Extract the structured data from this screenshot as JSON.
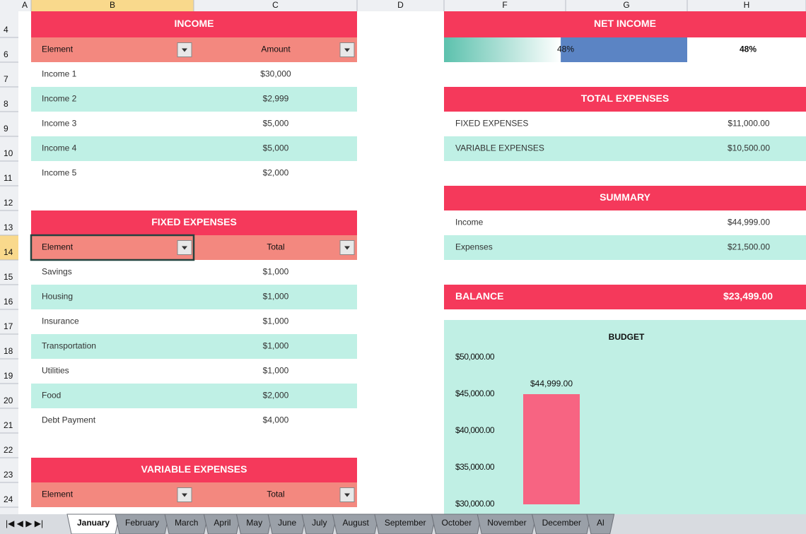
{
  "columns": [
    "A",
    "B",
    "C",
    "D",
    "F",
    "G",
    "H"
  ],
  "rows": [
    4,
    6,
    7,
    8,
    9,
    10,
    11,
    12,
    13,
    14,
    15,
    16,
    17,
    18,
    19,
    20,
    21,
    22,
    23,
    24
  ],
  "income": {
    "title": "INCOME",
    "headers": [
      "Element",
      "Amount"
    ],
    "rows": [
      [
        "Income 1",
        "$30,000"
      ],
      [
        "Income 2",
        "$2,999"
      ],
      [
        "Income 3",
        "$5,000"
      ],
      [
        "Income 4",
        "$5,000"
      ],
      [
        "Income 5",
        "$2,000"
      ]
    ]
  },
  "fixed_expenses": {
    "title": "FIXED EXPENSES",
    "headers": [
      "Element",
      "Total"
    ],
    "rows": [
      [
        "Savings",
        "$1,000"
      ],
      [
        "Housing",
        "$1,000"
      ],
      [
        "Insurance",
        "$1,000"
      ],
      [
        "Transportation",
        "$1,000"
      ],
      [
        "Utilities",
        "$1,000"
      ],
      [
        "Food",
        "$2,000"
      ],
      [
        "Debt Payment",
        "$4,000"
      ]
    ]
  },
  "variable_expenses": {
    "title": "VARIABLE EXPENSES",
    "headers": [
      "Element",
      "Total"
    ]
  },
  "net_income": {
    "title": "NET INCOME",
    "bar": {
      "value": 48,
      "label": "48%"
    },
    "cell": "48%"
  },
  "total_expenses": {
    "title": "TOTAL EXPENSES",
    "rows": [
      [
        "FIXED EXPENSES",
        "$11,000.00"
      ],
      [
        "VARIABLE EXPENSES",
        "$10,500.00"
      ]
    ]
  },
  "summary": {
    "title": "SUMMARY",
    "rows": [
      [
        "Income",
        "$44,999.00"
      ],
      [
        "Expenses",
        "$21,500.00"
      ]
    ]
  },
  "balance": {
    "label": "BALANCE",
    "value": "$23,499.00"
  },
  "chart_data": {
    "type": "bar",
    "title": "BUDGET",
    "categories": [
      null
    ],
    "values": [
      44999
    ],
    "value_labels": [
      "$44,999.00"
    ],
    "color": "#f76482",
    "ylim": [
      30000,
      50000
    ],
    "yticks": [
      {
        "value": 30000,
        "label": "$30,000.00"
      },
      {
        "value": 35000,
        "label": "$35,000.00"
      },
      {
        "value": 40000,
        "label": "$40,000.00"
      },
      {
        "value": 45000,
        "label": "$45,000.00"
      },
      {
        "value": 50000,
        "label": "$50,000.00"
      }
    ]
  },
  "sheet_tabs": [
    "January",
    "February",
    "March",
    "April",
    "May",
    "June",
    "July",
    "August",
    "September",
    "October",
    "November",
    "December",
    "Al"
  ],
  "active_tab": 0
}
